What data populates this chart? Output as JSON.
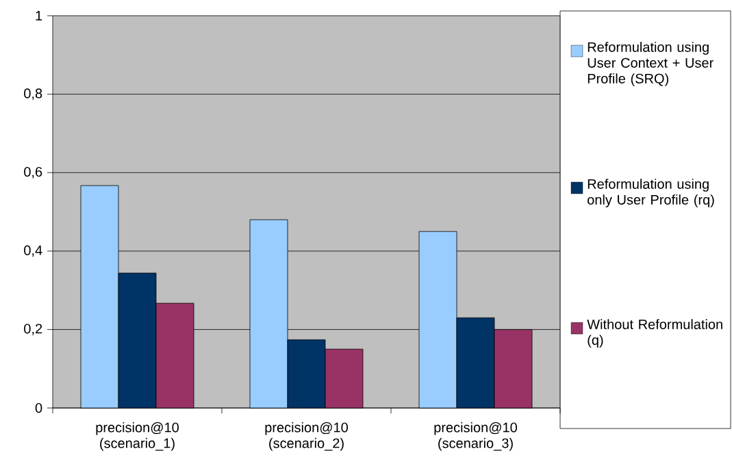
{
  "chart_data": {
    "type": "bar",
    "categories": [
      "precision@10 (scenario_1)",
      "precision@10 (scenario_2)",
      "precision@10 (scenario_3)"
    ],
    "series": [
      {
        "name": "Reformulation using User Context + User Profile (SRQ)",
        "color": "#99ccff",
        "values": [
          0.567,
          0.48,
          0.45
        ]
      },
      {
        "name": "Reformulation using only User Profile (rq)",
        "color": "#003366",
        "values": [
          0.344,
          0.174,
          0.23
        ]
      },
      {
        "name": "Without Reformulation (q)",
        "color": "#993366",
        "values": [
          0.267,
          0.15,
          0.2
        ]
      }
    ],
    "ylim": [
      0,
      1
    ],
    "yticks": [
      0,
      {
        "value": 0.2,
        "label": "0,2"
      },
      {
        "value": 0.4,
        "label": "0,4"
      },
      {
        "value": 0.6,
        "label": "0,6"
      },
      {
        "value": 0.8,
        "label": "0,8"
      },
      1
    ],
    "grid": "y",
    "legend": "right"
  }
}
